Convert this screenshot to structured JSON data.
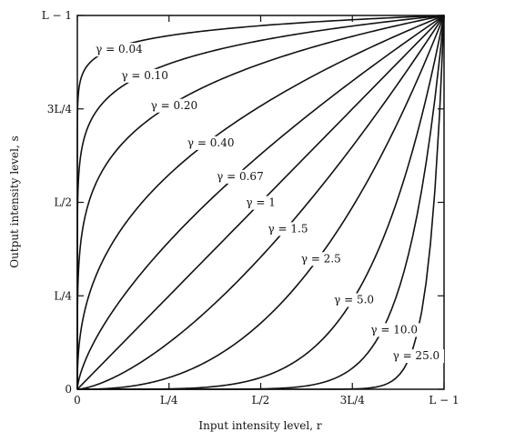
{
  "chart_data": {
    "type": "line",
    "title": "",
    "xlabel": "Input intensity level, r",
    "ylabel": "Output intensity level, s",
    "xlim": [
      0,
      1
    ],
    "ylim": [
      0,
      1
    ],
    "grid": false,
    "x_ticks": [
      {
        "value": 0,
        "label": "0"
      },
      {
        "value": 0.25,
        "label": "L/4"
      },
      {
        "value": 0.5,
        "label": "L/2"
      },
      {
        "value": 0.75,
        "label": "3L/4"
      },
      {
        "value": 1,
        "label": "L − 1"
      }
    ],
    "y_ticks": [
      {
        "value": 0,
        "label": "0"
      },
      {
        "value": 0.25,
        "label": "L/4"
      },
      {
        "value": 0.5,
        "label": "L/2"
      },
      {
        "value": 0.75,
        "label": "3L/4"
      },
      {
        "value": 1,
        "label": "L − 1"
      }
    ],
    "series": [
      {
        "gamma": 0.04,
        "label": "γ = 0.04",
        "label_at": [
          0.05,
          0.9
        ]
      },
      {
        "gamma": 0.1,
        "label": "γ = 0.10",
        "label_at": [
          0.12,
          0.83
        ]
      },
      {
        "gamma": 0.2,
        "label": "γ = 0.20",
        "label_at": [
          0.2,
          0.75
        ]
      },
      {
        "gamma": 0.4,
        "label": "γ = 0.40",
        "label_at": [
          0.3,
          0.65
        ]
      },
      {
        "gamma": 0.67,
        "label": "γ = 0.67",
        "label_at": [
          0.38,
          0.56
        ]
      },
      {
        "gamma": 1.0,
        "label": "γ = 1",
        "label_at": [
          0.46,
          0.49
        ]
      },
      {
        "gamma": 1.5,
        "label": "γ = 1.5",
        "label_at": [
          0.52,
          0.42
        ]
      },
      {
        "gamma": 2.5,
        "label": "γ = 2.5",
        "label_at": [
          0.61,
          0.34
        ]
      },
      {
        "gamma": 5.0,
        "label": "γ = 5.0",
        "label_at": [
          0.7,
          0.23
        ]
      },
      {
        "gamma": 10.0,
        "label": "γ = 10.0",
        "label_at": [
          0.8,
          0.15
        ]
      },
      {
        "gamma": 25.0,
        "label": "γ = 25.0",
        "label_at": [
          0.86,
          0.08
        ]
      }
    ]
  }
}
